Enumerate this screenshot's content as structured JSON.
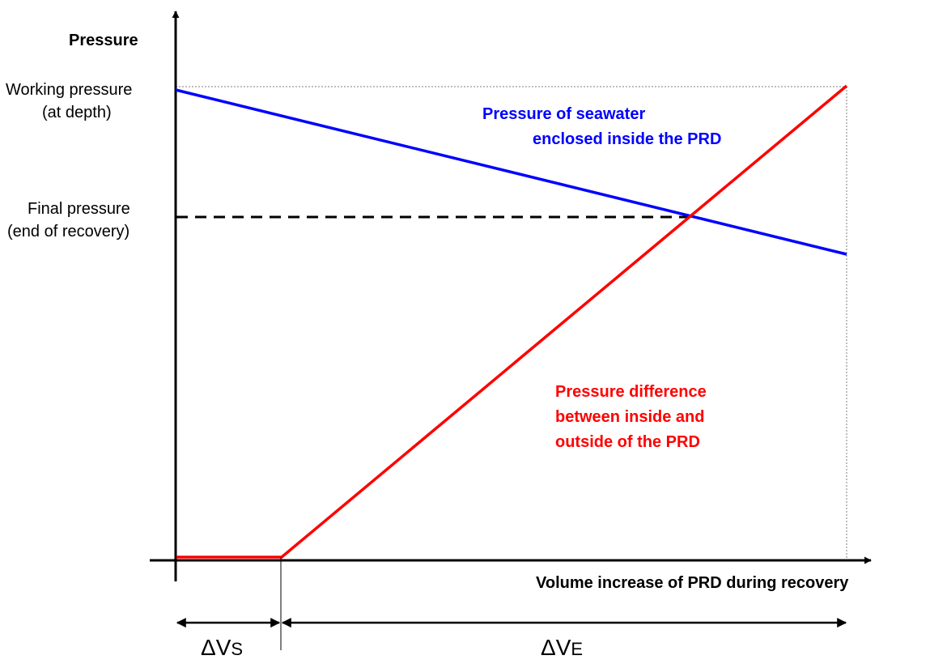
{
  "axes": {
    "y_title": "Pressure",
    "x_title": "Volume increase of PRD during recovery"
  },
  "pressure_levels": {
    "working": {
      "line1": "Working pressure",
      "line2": "(at depth)"
    },
    "final": {
      "line1": "Final pressure",
      "line2": "(end of recovery)"
    }
  },
  "curves": {
    "seawater": {
      "line1": "Pressure of seawater",
      "line2": "enclosed inside the PRD",
      "color": "#0000ff"
    },
    "difference": {
      "line1": "Pressure difference",
      "line2": "between inside and",
      "line3": "outside of the PRD",
      "color": "#ff0000"
    }
  },
  "volume_intervals": {
    "seal": {
      "delta": "ΔV",
      "sub": "S"
    },
    "expansion": {
      "delta": "ΔV",
      "sub": "E"
    }
  },
  "colors": {
    "axis": "#000000",
    "guide": "#7f7f7f",
    "final_pressure_dash": "#000000"
  }
}
